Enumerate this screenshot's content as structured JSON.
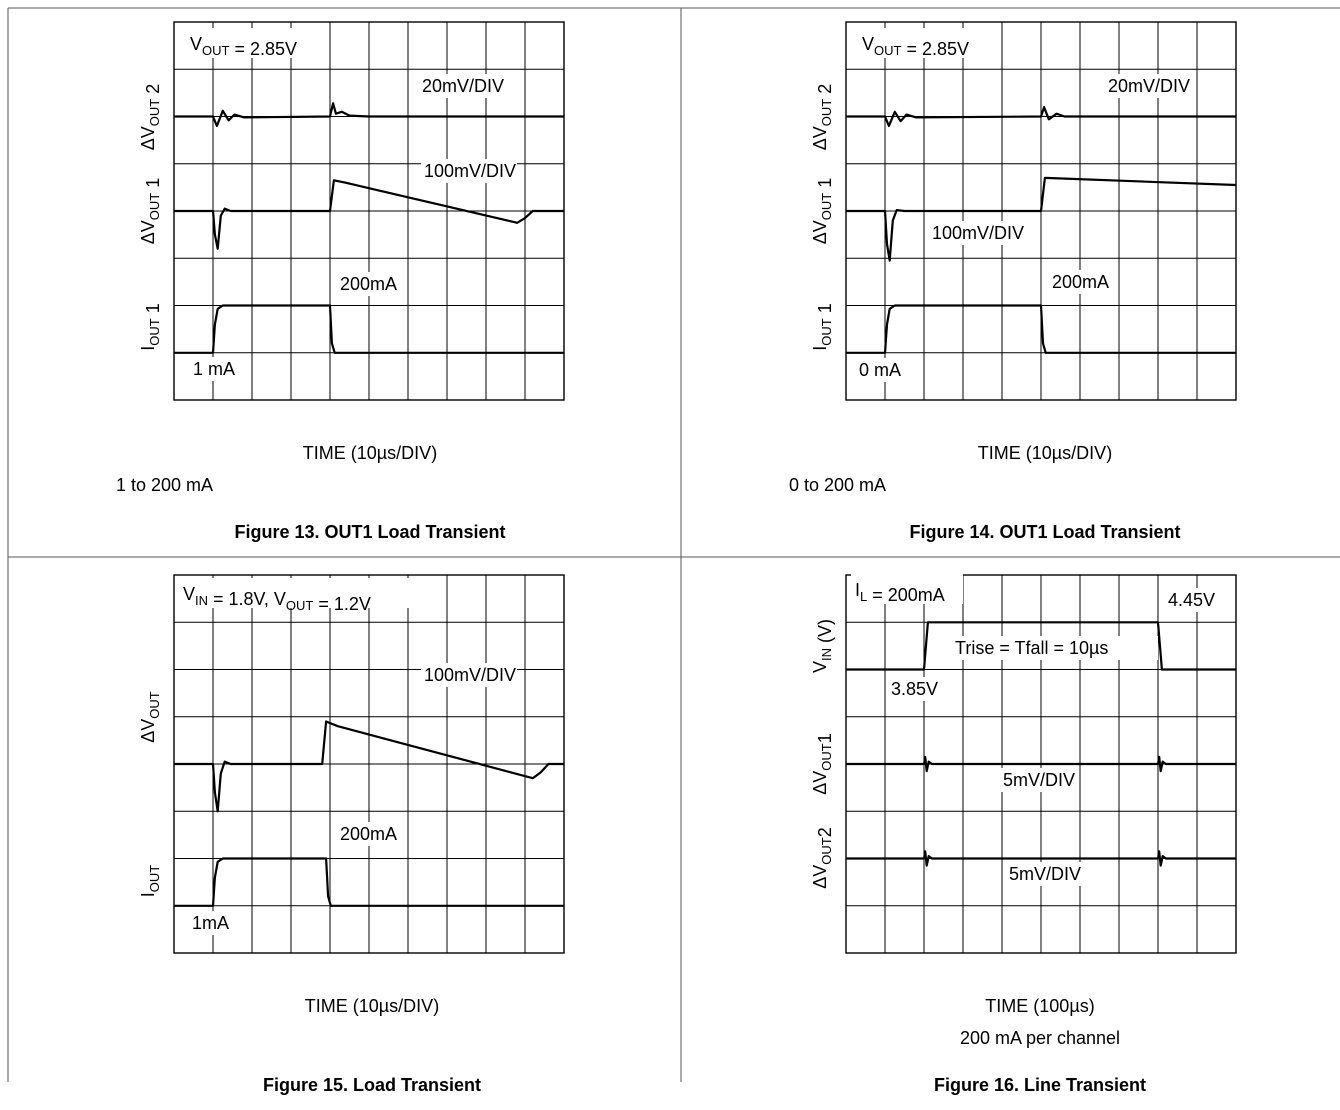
{
  "figures": [
    {
      "caption": "Figure 13.  OUT1 Load Transient",
      "xlabel": "TIME (10µs/DIV)",
      "note": "1 to 200 mA",
      "header_label": {
        "parts": [
          [
            "V",
            ""
          ],
          [
            "OUT",
            "sub"
          ],
          [
            " = 2.85V",
            ""
          ]
        ]
      },
      "ylabels": [
        {
          "parts": [
            [
              "ΔV",
              ""
            ],
            [
              "OUT",
              "sub"
            ],
            [
              " 2",
              ""
            ]
          ]
        },
        {
          "parts": [
            [
              "ΔV",
              ""
            ],
            [
              "OUT",
              "sub"
            ],
            [
              " 1",
              ""
            ]
          ]
        },
        {
          "parts": [
            [
              "I",
              ""
            ],
            [
              "OUT",
              "sub"
            ],
            [
              " 1",
              ""
            ]
          ]
        }
      ],
      "annotations": [
        {
          "parts": [
            [
              "20mV/DIV",
              ""
            ]
          ]
        },
        {
          "parts": [
            [
              "100mV/DIV",
              ""
            ]
          ]
        },
        {
          "parts": [
            [
              "200mA",
              ""
            ]
          ]
        },
        {
          "parts": [
            [
              "1 mA",
              ""
            ]
          ]
        }
      ]
    },
    {
      "caption": "Figure 14. OUT1 Load Transient",
      "xlabel": "TIME (10µs/DIV)",
      "note": "0 to 200 mA",
      "header_label": {
        "parts": [
          [
            "V",
            ""
          ],
          [
            "OUT",
            "sub"
          ],
          [
            " = 2.85V",
            ""
          ]
        ]
      },
      "ylabels": [
        {
          "parts": [
            [
              "ΔV",
              ""
            ],
            [
              "OUT",
              "sub"
            ],
            [
              " 2",
              ""
            ]
          ]
        },
        {
          "parts": [
            [
              "ΔV",
              ""
            ],
            [
              "OUT",
              "sub"
            ],
            [
              " 1",
              ""
            ]
          ]
        },
        {
          "parts": [
            [
              "I",
              ""
            ],
            [
              "OUT",
              "sub"
            ],
            [
              " 1",
              ""
            ]
          ]
        }
      ],
      "annotations": [
        {
          "parts": [
            [
              "20mV/DIV",
              ""
            ]
          ]
        },
        {
          "parts": [
            [
              "100mV/DIV",
              ""
            ]
          ]
        },
        {
          "parts": [
            [
              "200mA",
              ""
            ]
          ]
        },
        {
          "parts": [
            [
              "0 mA",
              ""
            ]
          ]
        }
      ]
    },
    {
      "caption": "Figure 15. Load Transient",
      "xlabel": "TIME (10µs/DIV)",
      "note": "",
      "header_label": {
        "parts": [
          [
            "V",
            ""
          ],
          [
            "IN",
            "sub"
          ],
          [
            " = 1.8V, V",
            ""
          ],
          [
            "OUT",
            "sub"
          ],
          [
            " = 1.2V",
            ""
          ]
        ]
      },
      "ylabels": [
        {
          "parts": [
            [
              "ΔV",
              ""
            ],
            [
              "OUT",
              "sub"
            ]
          ]
        },
        {
          "parts": [
            [
              "I",
              ""
            ],
            [
              "OUT",
              "sub"
            ]
          ]
        }
      ],
      "annotations": [
        {
          "parts": [
            [
              "100mV/DIV",
              ""
            ]
          ]
        },
        {
          "parts": [
            [
              "200mA",
              ""
            ]
          ]
        },
        {
          "parts": [
            [
              "1mA",
              ""
            ]
          ]
        }
      ]
    },
    {
      "caption": "Figure 16. Line Transient",
      "xlabel": "TIME (100µs)",
      "note": "200 mA per channel",
      "header_label": {
        "parts": [
          [
            "I",
            ""
          ],
          [
            "L",
            "sub"
          ],
          [
            " = 200mA",
            ""
          ]
        ]
      },
      "ylabels": [
        {
          "parts": [
            [
              "V",
              ""
            ],
            [
              "IN",
              "sub"
            ],
            [
              " (V)",
              ""
            ]
          ]
        },
        {
          "parts": [
            [
              "ΔV",
              ""
            ],
            [
              "OUT",
              "sub"
            ],
            [
              "1",
              ""
            ]
          ]
        },
        {
          "parts": [
            [
              "ΔV",
              ""
            ],
            [
              "OUT",
              "sub"
            ],
            [
              "2",
              ""
            ]
          ]
        }
      ],
      "annotations": [
        {
          "parts": [
            [
              "4.45V",
              ""
            ]
          ]
        },
        {
          "parts": [
            [
              "Trise = Tfall = 10µs",
              ""
            ]
          ]
        },
        {
          "parts": [
            [
              "3.85V",
              ""
            ]
          ]
        },
        {
          "parts": [
            [
              "5mV/DIV",
              ""
            ]
          ]
        },
        {
          "parts": [
            [
              "5mV/DIV",
              ""
            ]
          ]
        }
      ]
    }
  ],
  "chart_data": [
    {
      "type": "line",
      "title": "Figure 13.  OUT1 Load Transient",
      "xlabel": "TIME (10µs/DIV)",
      "x_divisions": 10,
      "y_divisions": 8,
      "grid": true,
      "series": [
        {
          "name": "ΔVOUT 2",
          "scale": "20mV/DIV",
          "x": [
            0,
            1.0,
            1.1,
            1.25,
            1.4,
            1.55,
            1.8,
            4.0,
            4.08,
            4.15,
            4.3,
            4.5,
            5.0,
            10
          ],
          "y": [
            6.0,
            6.0,
            5.8,
            6.12,
            5.92,
            6.04,
            5.98,
            6.0,
            6.28,
            6.06,
            6.1,
            6.02,
            6.0,
            6.0
          ]
        },
        {
          "name": "ΔVOUT 1",
          "scale": "100mV/DIV",
          "x": [
            0,
            1.0,
            1.05,
            1.12,
            1.2,
            1.3,
            1.45,
            1.6,
            4.0,
            4.1,
            4.4,
            8.8,
            9.0,
            9.2,
            10
          ],
          "y": [
            4.0,
            4.0,
            3.5,
            3.2,
            3.9,
            4.05,
            4.0,
            4.0,
            4.0,
            4.65,
            4.6,
            3.75,
            3.85,
            4.0,
            4.0
          ]
        },
        {
          "name": "IOUT 1",
          "scale": "200mA",
          "x": [
            0,
            1.0,
            1.05,
            1.12,
            1.25,
            1.5,
            4.0,
            4.05,
            4.12,
            10
          ],
          "y": [
            1.0,
            1.0,
            1.6,
            1.93,
            2.0,
            2.0,
            2.0,
            1.2,
            1.0,
            1.0
          ]
        }
      ]
    },
    {
      "type": "line",
      "title": "Figure 14. OUT1 Load Transient",
      "xlabel": "TIME (10µs/DIV)",
      "x_divisions": 10,
      "y_divisions": 8,
      "grid": true,
      "series": [
        {
          "name": "ΔVOUT 2",
          "scale": "20mV/DIV",
          "x": [
            0,
            1.0,
            1.1,
            1.25,
            1.4,
            1.55,
            1.8,
            5.0,
            5.08,
            5.2,
            5.4,
            5.6,
            10
          ],
          "y": [
            6.0,
            6.0,
            5.8,
            6.1,
            5.9,
            6.04,
            5.98,
            6.0,
            6.2,
            5.94,
            6.06,
            6.0,
            6.0
          ]
        },
        {
          "name": "ΔVOUT 1",
          "scale": "100mV/DIV",
          "x": [
            0,
            1.0,
            1.05,
            1.12,
            1.2,
            1.3,
            1.5,
            5.0,
            5.1,
            10
          ],
          "y": [
            4.0,
            4.0,
            3.3,
            2.95,
            3.8,
            4.02,
            4.0,
            4.0,
            4.7,
            4.55
          ]
        },
        {
          "name": "IOUT 1",
          "scale": "200mA",
          "x": [
            0,
            1.0,
            1.05,
            1.12,
            1.25,
            1.5,
            5.0,
            5.05,
            5.12,
            10
          ],
          "y": [
            1.0,
            1.0,
            1.6,
            1.93,
            2.0,
            2.0,
            2.0,
            1.2,
            1.0,
            1.0
          ]
        }
      ]
    },
    {
      "type": "line",
      "title": "Figure 15. Load Transient",
      "xlabel": "TIME (10µs/DIV)",
      "x_divisions": 10,
      "y_divisions": 8,
      "grid": true,
      "series": [
        {
          "name": "ΔVOUT",
          "scale": "100mV/DIV",
          "x": [
            0,
            1.0,
            1.05,
            1.12,
            1.2,
            1.3,
            1.45,
            3.8,
            3.9,
            4.2,
            9.2,
            9.4,
            9.6,
            10
          ],
          "y": [
            4.0,
            4.0,
            3.4,
            3.0,
            3.8,
            4.05,
            4.0,
            4.0,
            4.9,
            4.8,
            3.7,
            3.82,
            4.0,
            4.0
          ]
        },
        {
          "name": "IOUT",
          "scale": "200mA",
          "x": [
            0,
            1.0,
            1.05,
            1.12,
            1.25,
            1.5,
            3.9,
            3.95,
            4.02,
            10
          ],
          "y": [
            1.0,
            1.0,
            1.6,
            1.93,
            2.0,
            2.0,
            2.0,
            1.2,
            1.0,
            1.0
          ]
        }
      ]
    },
    {
      "type": "line",
      "title": "Figure 16. Line Transient",
      "xlabel": "TIME (100µs)",
      "x_divisions": 10,
      "y_divisions": 8,
      "grid": true,
      "series": [
        {
          "name": "VIN (V)",
          "scale": "3.85V to 4.45V",
          "x": [
            0,
            2.0,
            2.1,
            8.0,
            8.1,
            10
          ],
          "y": [
            6.0,
            6.0,
            7.0,
            7.0,
            6.0,
            6.0
          ]
        },
        {
          "name": "ΔVOUT1",
          "scale": "5mV/DIV",
          "x": [
            0,
            2.0,
            2.03,
            2.07,
            2.12,
            2.2,
            8.0,
            8.03,
            8.07,
            8.12,
            8.2,
            10
          ],
          "y": [
            4.0,
            4.0,
            4.15,
            3.85,
            4.05,
            4.0,
            4.0,
            4.15,
            3.85,
            4.05,
            4.0,
            4.0
          ]
        },
        {
          "name": "ΔVOUT2",
          "scale": "5mV/DIV",
          "x": [
            0,
            2.0,
            2.03,
            2.07,
            2.12,
            2.2,
            8.0,
            8.03,
            8.07,
            8.12,
            8.2,
            10
          ],
          "y": [
            2.0,
            2.0,
            2.15,
            1.85,
            2.05,
            2.0,
            2.0,
            2.15,
            1.85,
            2.05,
            2.0,
            2.0
          ]
        }
      ]
    }
  ]
}
